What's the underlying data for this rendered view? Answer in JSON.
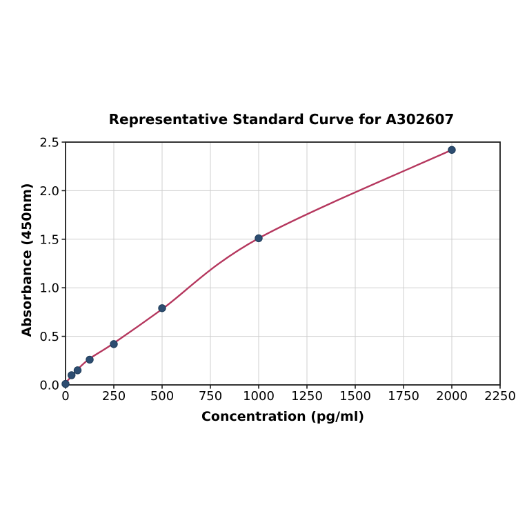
{
  "page": {
    "background": "#ffffff"
  },
  "chart_data": {
    "type": "scatter",
    "title": "Representative Standard Curve for A302607",
    "xlabel": "Concentration (pg/ml)",
    "ylabel": "Absorbance (450nm)",
    "xlim": [
      0,
      2250
    ],
    "ylim": [
      0.0,
      2.5
    ],
    "xtick_labels": [
      "0",
      "250",
      "500",
      "750",
      "1000",
      "1250",
      "1500",
      "1750",
      "2000",
      "2250"
    ],
    "xtick_values": [
      0,
      250,
      500,
      750,
      1000,
      1250,
      1500,
      1750,
      2000,
      2250
    ],
    "ytick_labels": [
      "0.0",
      "0.5",
      "1.0",
      "1.5",
      "2.0",
      "2.5"
    ],
    "ytick_values": [
      0,
      0.5,
      1.0,
      1.5,
      2.0,
      2.5
    ],
    "grid": true,
    "legend_position": "none",
    "series": [
      {
        "name": "standard-points",
        "type": "scatter",
        "color": "#2d4d71",
        "marker_edge_color": "#1f3c59",
        "x": [
          0,
          31.25,
          62.5,
          125,
          250,
          500,
          1000,
          2000
        ],
        "y": [
          0.01,
          0.1,
          0.15,
          0.26,
          0.42,
          0.79,
          1.51,
          2.42
        ]
      },
      {
        "name": "fit-curve",
        "type": "line",
        "color": "#b5375e",
        "x": [
          0,
          31.25,
          62.5,
          125,
          250,
          500,
          1000,
          2000
        ],
        "y": [
          0.02,
          0.09,
          0.16,
          0.27,
          0.43,
          0.78,
          1.51,
          2.42
        ]
      }
    ],
    "colors": {
      "grid": "#cfcfcf",
      "axis": "#1c1c1c",
      "text": "#000000",
      "background": "#ffffff"
    }
  }
}
